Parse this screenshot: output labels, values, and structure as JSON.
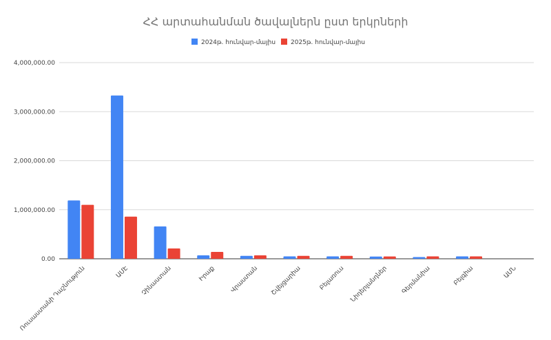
{
  "chart_data": {
    "type": "bar",
    "title": "ՀՀ արտահանման ծավալներն ըստ երկրների",
    "xlabel": "",
    "ylabel": "",
    "ylim": [
      0,
      4000000
    ],
    "yticks": [
      0,
      1000000,
      2000000,
      3000000,
      4000000
    ],
    "ytick_labels": [
      "0.00",
      "1,000,000.00",
      "2,000,000.00",
      "3,000,000.00",
      "4,000,000.00"
    ],
    "grid": true,
    "legend_position": "top",
    "categories": [
      "Ռուսաստանի Դաշնություն",
      "ԱՄԷ",
      "Չինաստան",
      "Իրաք",
      "Վրաստան",
      "Շվեյցարիա",
      "Բելառուս",
      "Նիդերլանդներ",
      "Գերմանիա",
      "Բելգիա",
      "ԱՄՆ"
    ],
    "series": [
      {
        "name": "2024թ. հունվար-մայիս",
        "color": "#4285f4",
        "values": [
          1190000,
          3330000,
          660000,
          70000,
          60000,
          50000,
          50000,
          45000,
          35000,
          50000,
          0
        ]
      },
      {
        "name": "2025թ. հունվար-մայիս",
        "color": "#ea4335",
        "values": [
          1100000,
          860000,
          210000,
          140000,
          70000,
          60000,
          60000,
          48000,
          50000,
          50000,
          0
        ]
      }
    ]
  }
}
